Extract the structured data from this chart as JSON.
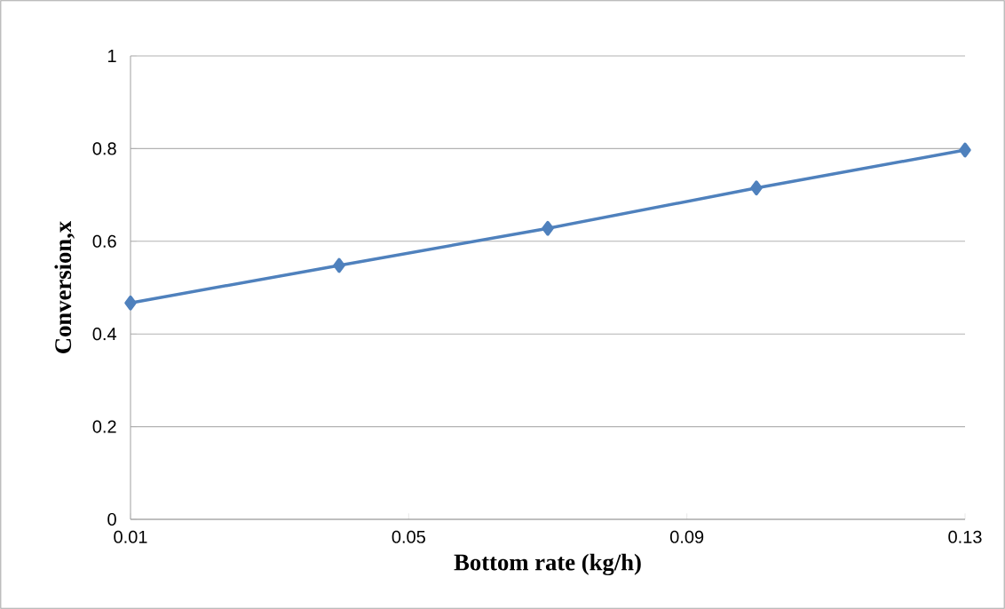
{
  "chart_data": {
    "type": "line",
    "xlabel": "Bottom rate (kg/h)",
    "ylabel": "Conversion,x",
    "x": [
      0.01,
      0.04,
      0.07,
      0.1,
      0.13
    ],
    "series": [
      {
        "color": "#4f81bd",
        "values": [
          0.467,
          0.548,
          0.628,
          0.715,
          0.797
        ]
      }
    ],
    "xlim": [
      0.01,
      0.13
    ],
    "xticks": [
      0.01,
      0.05,
      0.09,
      0.13
    ],
    "ylim": [
      0,
      1
    ],
    "yticks": [
      0,
      0.2,
      0.4,
      0.6,
      0.8,
      1
    ],
    "grid": "y",
    "marker": "diamond",
    "line_style": "solid"
  }
}
